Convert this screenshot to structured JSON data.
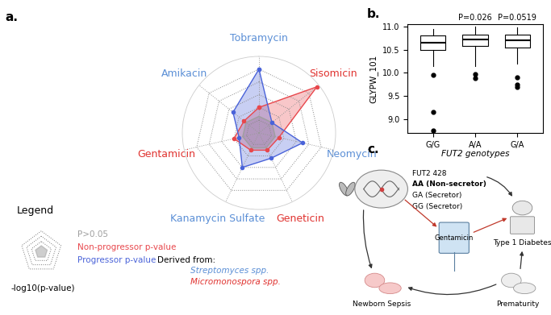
{
  "chart_data": [
    {
      "panel": "a.",
      "type": "radar",
      "categories": [
        "Tobramycin",
        "Sisomicin",
        "Neomycin",
        "Geneticin",
        "Kanamycin Sulfate",
        "Gentamicin",
        "Amikacin"
      ],
      "series": [
        {
          "name": "Non-progressor p-value",
          "color": "#e8474c",
          "values": [
            2.0,
            5.8,
            1.6,
            1.5,
            1.5,
            2.0,
            1.5
          ]
        },
        {
          "name": "Progressor p-value",
          "color": "#4a63d9",
          "values": [
            5.0,
            1.3,
            3.5,
            2.2,
            3.0,
            1.6,
            2.6
          ]
        }
      ],
      "threshold": {
        "name": "P>0.05",
        "value": 1.3,
        "color": "#9e9e9e"
      },
      "ylim": [
        0,
        6
      ],
      "yticks": [
        1,
        2,
        3,
        4,
        5
      ],
      "tick_labels": "x",
      "legend_title": "Legend",
      "axis_label": "-log10(p-value)",
      "derived_from": {
        "title": "Derived from:",
        "groups": [
          {
            "name": "Streptomyces spp.",
            "color": "#5b8fd6",
            "categories": [
              "Tobramycin",
              "Neomycin",
              "Kanamycin Sulfate",
              "Amikacin"
            ]
          },
          {
            "name": "Micromonospora spp.",
            "color": "#e0322f",
            "categories": [
              "Sisomicin",
              "Geneticin",
              "Gentamicin"
            ]
          }
        ]
      }
    },
    {
      "panel": "b.",
      "type": "box",
      "categories": [
        "G/G",
        "A/A",
        "G/A"
      ],
      "boxes": [
        {
          "whislo": 10.15,
          "q1": 10.5,
          "med": 10.65,
          "q3": 10.8,
          "whishi": 10.95,
          "fliers": [
            9.95,
            9.15,
            8.75
          ]
        },
        {
          "whislo": 10.15,
          "q1": 10.58,
          "med": 10.72,
          "q3": 10.83,
          "whishi": 11.0,
          "fliers": [
            9.97,
            9.88
          ]
        },
        {
          "whislo": 10.2,
          "q1": 10.55,
          "med": 10.7,
          "q3": 10.82,
          "whishi": 10.98,
          "fliers": [
            9.9,
            9.75,
            9.7
          ]
        }
      ],
      "annotations": [
        {
          "category": "A/A",
          "text": "P=0.026"
        },
        {
          "category": "G/A",
          "text": "P=0.0519"
        }
      ],
      "x_label": "FUT2 genotypes",
      "y_label": "GLYPW_101",
      "ylim": [
        8.7,
        11.05
      ],
      "yticks": [
        {
          "value": 9.0,
          "label": "9.0"
        },
        {
          "value": 9.5,
          "label": "9.5"
        },
        {
          "value": 10.0,
          "label": "10.0"
        },
        {
          "value": 10.5,
          "label": "10.5"
        },
        {
          "value": 11.0,
          "label": "11.0"
        }
      ]
    }
  ],
  "diagram": {
    "panel": "c.",
    "gene": {
      "title": "FUT2 428",
      "genotypes": [
        {
          "text": "AA (Non-secretor)",
          "bold": true
        },
        {
          "text": "GA (Secretor)",
          "bold": false
        },
        {
          "text": "GG (Secretor)",
          "bold": false
        }
      ]
    },
    "nodes": {
      "drug": "Gentamicin",
      "disease": "Type 1 Diabetes",
      "sepsis": "Newborn Sepsis",
      "prematurity": "Prematurity"
    }
  }
}
